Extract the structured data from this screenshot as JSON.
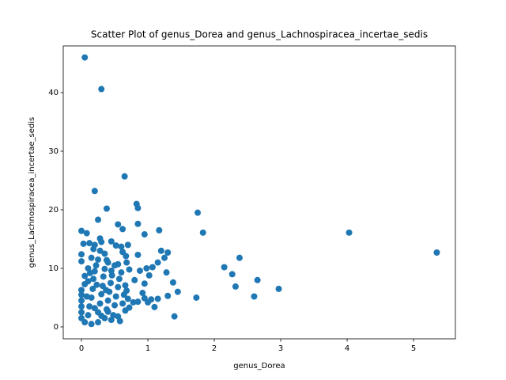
{
  "chart_data": {
    "type": "scatter",
    "title": "Scatter Plot of genus_Dorea and genus_Lachnospiracea_incertae_sedis",
    "x_label": "genus_Dorea",
    "y_label": "genus_Lachnospiracea_incertae_sedis",
    "color": "#1f77b4",
    "xlim": [
      -0.274,
      5.63
    ],
    "ylim": [
      -2.03,
      47.97
    ],
    "xticks": [
      0,
      1,
      2,
      3,
      4,
      5
    ],
    "yticks": [
      0,
      10,
      20,
      30,
      40
    ],
    "x": [
      0.05,
      0.3,
      0.65,
      0.2,
      0.83,
      0.85,
      0.38,
      1.75,
      0.25,
      0.55,
      0.85,
      1.83,
      4.03,
      5.35,
      0.62,
      0.95,
      1.17,
      0.0,
      0.08,
      2.15,
      2.27,
      2.38,
      2.65,
      2.32,
      2.97,
      2.6,
      1.73,
      1.4,
      1.45,
      1.38,
      1.3,
      1.2,
      1.25,
      1.15,
      1.07,
      1.02,
      0.95,
      0.92,
      1.05,
      1.1,
      1.15,
      1.3,
      1.28,
      0.98,
      0.85,
      0.7,
      0.6,
      0.52,
      0.45,
      0.3,
      0.28,
      0.2,
      0.12,
      0.03,
      0.0,
      0.0,
      0.15,
      0.25,
      0.38,
      0.55,
      0.62,
      0.67,
      0.68,
      0.72,
      0.8,
      0.88,
      0.78,
      0.7,
      0.66,
      0.72,
      0.58,
      0.45,
      0.35,
      0.25,
      0.15,
      0.05,
      0,
      0,
      0,
      0,
      0,
      0,
      0.05,
      0.05,
      0.1,
      0.1,
      0.12,
      0.15,
      0.17,
      0.18,
      0.2,
      0.22,
      0.25,
      0.28,
      0.3,
      0.32,
      0.33,
      0.35,
      0.38,
      0.4,
      0.42,
      0.44,
      0.46,
      0.48,
      0.5,
      0.52,
      0.55,
      0.57,
      0.6,
      0.62,
      0.64,
      0.66,
      0.68,
      0.5,
      0.4,
      0.35,
      0.28,
      0.18,
      0.1,
      0.08,
      0.2,
      0.3,
      0.4,
      0.55,
      0.23,
      0.37,
      0.13,
      0.45,
      0.85,
      0.95,
      1.0
    ],
    "values": [
      46,
      40.6,
      25.7,
      23.2,
      21,
      20.3,
      20.2,
      19.5,
      18.3,
      17.5,
      17.6,
      16.1,
      16.1,
      12.7,
      16.7,
      15.8,
      16.5,
      16.4,
      16,
      10.2,
      9,
      11.8,
      8,
      6.9,
      6.5,
      5.2,
      5,
      1.8,
      6,
      7.6,
      12.7,
      13,
      11.8,
      11,
      10.2,
      8.8,
      7.4,
      5.8,
      4.7,
      3.4,
      4.8,
      5.3,
      9.3,
      10,
      12.3,
      14,
      13.7,
      13.9,
      14.6,
      14.5,
      15.1,
      14,
      14.3,
      14.2,
      12.4,
      11.2,
      11.8,
      11.5,
      11.4,
      10.7,
      12.8,
      12.1,
      11,
      9.8,
      8,
      9.6,
      4.2,
      4.8,
      2.8,
      3.3,
      1,
      1.2,
      1.5,
      0.8,
      0.5,
      0.8,
      1.5,
      2.5,
      3.5,
      4.5,
      5.5,
      6.3,
      7.3,
      8.7,
      7.8,
      2,
      3.5,
      5,
      6.5,
      8.2,
      9.5,
      10.5,
      2.5,
      4,
      5.6,
      7,
      8.6,
      9.9,
      3,
      4.5,
      6,
      7.5,
      8.8,
      2,
      3.7,
      5.2,
      6.8,
      8.2,
      9.3,
      4,
      5.5,
      7.1,
      6.2,
      10.5,
      11,
      12.5,
      13,
      13.3,
      10,
      5.2,
      3.2,
      1.9,
      2.6,
      1.8,
      7.2,
      6.3,
      9.2,
      9.6,
      4.3,
      4.9,
      4.2
    ]
  }
}
